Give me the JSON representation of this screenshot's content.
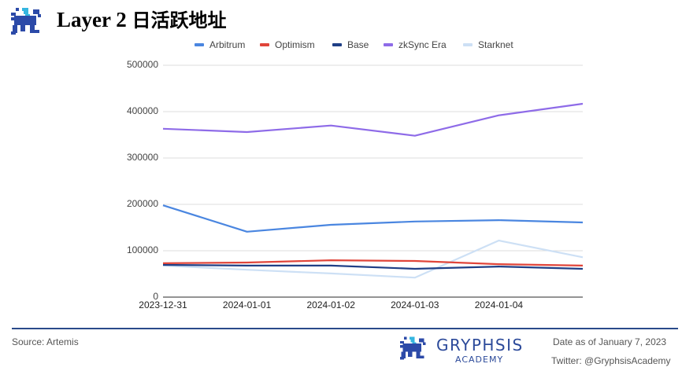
{
  "header": {
    "title_en": "Layer 2 ",
    "title_cn": "日活跃地址",
    "logo_icon": "gryphon-logo-icon"
  },
  "footer": {
    "source": "Source: Artemis",
    "brand_name": "GRYPHSIS",
    "brand_sub": "ACADEMY",
    "date_note": "Date as of January 7, 2023",
    "twitter": "Twitter: @GryphsisAcademy"
  },
  "colors": {
    "Arbitrum": "#4a86e0",
    "Optimism": "#e0453a",
    "Base": "#1f3f86",
    "zkSync Era": "#8e6be8",
    "Starknet": "#cde0f5",
    "grid": "#dddddd",
    "axis": "#555555",
    "brand": "#2c4a9a"
  },
  "chart_data": {
    "type": "line",
    "title": "Layer 2 日活跃地址",
    "xlabel": "",
    "ylabel": "",
    "x": [
      "2023-12-31",
      "2024-01-01",
      "2024-01-02",
      "2024-01-03",
      "2024-01-04",
      "2024-01-05"
    ],
    "x_tick_labels": [
      "2023-12-31",
      "2024-01-01",
      "2024-01-02",
      "2024-01-03",
      "2024-01-04"
    ],
    "y_ticks": [
      0,
      100000,
      200000,
      300000,
      400000,
      500000
    ],
    "ylim": [
      0,
      500000
    ],
    "grid": true,
    "legend_position": "top",
    "series": [
      {
        "name": "Arbitrum",
        "values": [
          198000,
          141000,
          156000,
          163000,
          166000,
          161000
        ]
      },
      {
        "name": "Optimism",
        "values": [
          73000,
          74500,
          79500,
          78000,
          71000,
          68000
        ]
      },
      {
        "name": "Base",
        "values": [
          69500,
          68000,
          68000,
          61000,
          66000,
          61000
        ]
      },
      {
        "name": "zkSync Era",
        "values": [
          363000,
          356000,
          370000,
          348000,
          392000,
          417000
        ]
      },
      {
        "name": "Starknet",
        "values": [
          68000,
          59000,
          51000,
          42000,
          122000,
          86000
        ]
      }
    ]
  }
}
